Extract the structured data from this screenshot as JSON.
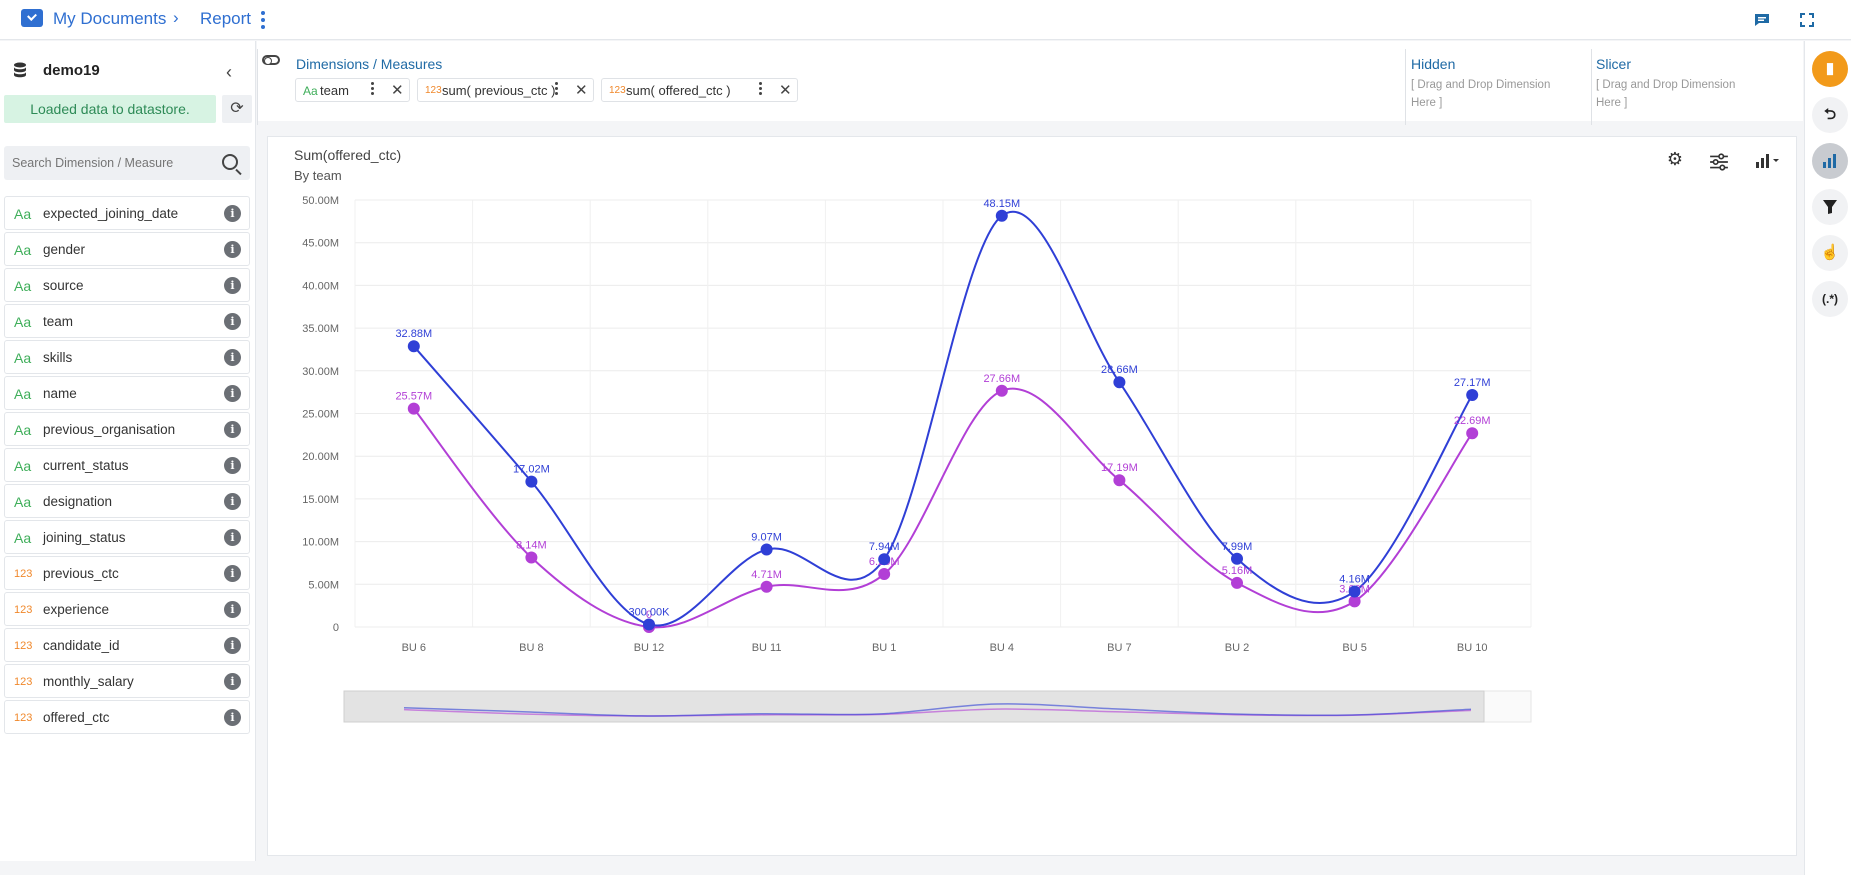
{
  "breadcrumb": {
    "root": "My Documents",
    "current": "Report"
  },
  "datastore": {
    "name": "demo19",
    "status": "Loaded data to datastore."
  },
  "search": {
    "placeholder": "Search Dimension / Measure"
  },
  "fields": [
    {
      "type": "Aa",
      "name": "expected_joining_date"
    },
    {
      "type": "Aa",
      "name": "gender"
    },
    {
      "type": "Aa",
      "name": "source"
    },
    {
      "type": "Aa",
      "name": "team"
    },
    {
      "type": "Aa",
      "name": "skills"
    },
    {
      "type": "Aa",
      "name": "name"
    },
    {
      "type": "Aa",
      "name": "previous_organisation"
    },
    {
      "type": "Aa",
      "name": "current_status"
    },
    {
      "type": "Aa",
      "name": "designation"
    },
    {
      "type": "Aa",
      "name": "joining_status"
    },
    {
      "type": "123",
      "name": "previous_ctc"
    },
    {
      "type": "123",
      "name": "experience"
    },
    {
      "type": "123",
      "name": "candidate_id"
    },
    {
      "type": "123",
      "name": "monthly_salary"
    },
    {
      "type": "123",
      "name": "offered_ctc"
    }
  ],
  "dims_measures": {
    "title": "Dimensions / Measures",
    "pills": [
      {
        "type": "Aa",
        "label": "team"
      },
      {
        "type": "123",
        "label": "sum( previous_ctc )"
      },
      {
        "type": "123",
        "label": "sum( offered_ctc )"
      }
    ]
  },
  "hidden": {
    "title": "Hidden",
    "hint_line1": "[ Drag and Drop Dimension",
    "hint_line2": "Here ]"
  },
  "slicer": {
    "title": "Slicer",
    "hint_line1": "[ Drag and Drop Dimension",
    "hint_line2": "Here ]"
  },
  "chart": {
    "title": "Sum(offered_ctc)",
    "subtitle": "By team"
  },
  "colors": {
    "offered": "#2f3fd6",
    "previous": "#b23fd6",
    "accent": "#1f6aa5",
    "brand": "#2f6fd1",
    "rail_active": "#f29a1a"
  },
  "chart_data": {
    "type": "line",
    "categories": [
      "BU 6",
      "BU 8",
      "BU 12",
      "BU 11",
      "BU 1",
      "BU 4",
      "BU 7",
      "BU 2",
      "BU 5",
      "BU 10"
    ],
    "series": [
      {
        "values": [
          32.88,
          17.02,
          0.3,
          9.07,
          7.94,
          48.15,
          28.66,
          7.99,
          4.16,
          27.17
        ],
        "labels": [
          "32.88M",
          "17.02M",
          "300.00K",
          "9.07M",
          "7.94M",
          "48.15M",
          "28.66M",
          "7.99M",
          "4.16M",
          "27.17M"
        ]
      },
      {
        "values": [
          25.57,
          8.14,
          0,
          4.71,
          6.2,
          27.66,
          17.19,
          5.16,
          3.0,
          22.69
        ],
        "labels": [
          "25.57M",
          "8.14M",
          "0",
          "4.71M",
          "6.20M",
          "27.66M",
          "17.19M",
          "5.16M",
          "3.00M",
          "22.69M"
        ]
      }
    ],
    "ylim": [
      0,
      50
    ],
    "yticks": [
      "0",
      "5.00M",
      "10.00M",
      "15.00M",
      "20.00M",
      "25.00M",
      "30.00M",
      "35.00M",
      "40.00M",
      "45.00M",
      "50.00M"
    ],
    "grid": true
  }
}
